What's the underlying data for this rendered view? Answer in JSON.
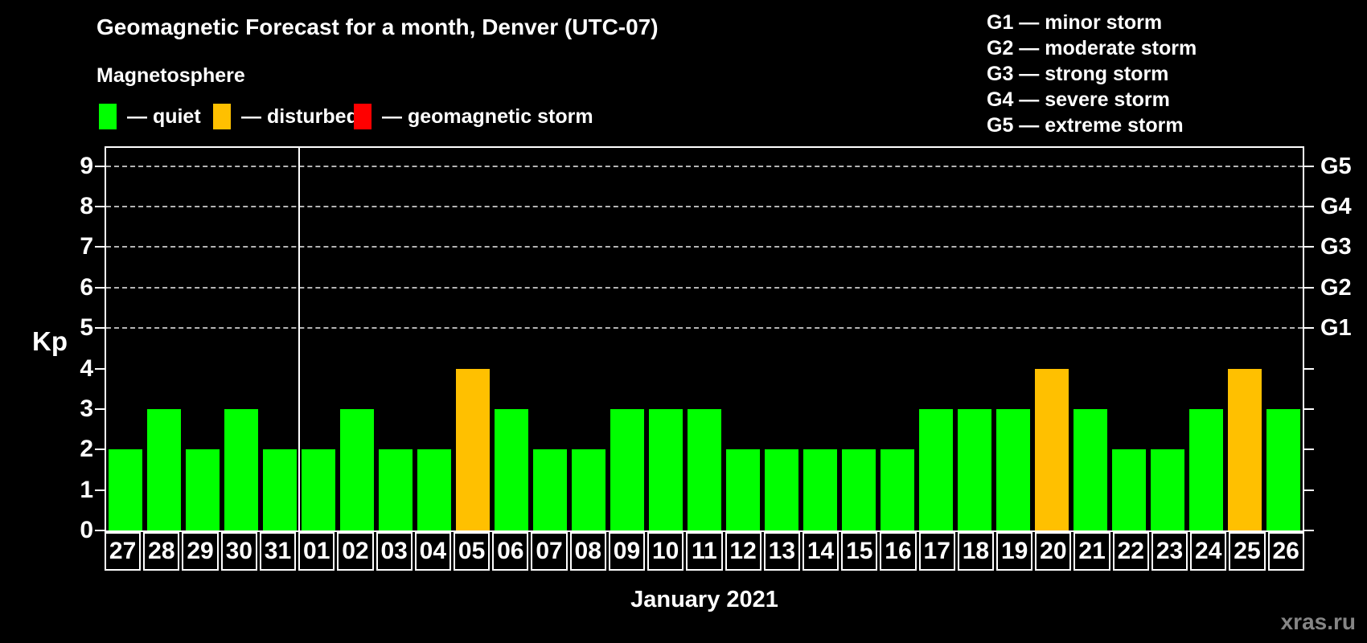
{
  "header": {
    "title": "Geomagnetic Forecast for a month, Denver (UTC-07)",
    "subtitle": "Magnetosphere"
  },
  "legend": {
    "items": [
      {
        "state": "quiet",
        "label": "— quiet",
        "color": "#00ff00"
      },
      {
        "state": "disturbed",
        "label": "— disturbed",
        "color": "#ffc000"
      },
      {
        "state": "storm",
        "label": "— geomagnetic storm",
        "color": "#ff0000"
      }
    ]
  },
  "g_legend": {
    "items": [
      "G1 — minor storm",
      "G2 — moderate storm",
      "G3 — strong storm",
      "G4 — severe storm",
      "G5 — extreme storm"
    ]
  },
  "axis": {
    "kp_label": "Kp",
    "month_label": "January 2021"
  },
  "watermark": "xras.ru",
  "chart_data": {
    "type": "bar",
    "title": "Geomagnetic Forecast for a month, Denver (UTC-07)",
    "xlabel": "January 2021",
    "ylabel": "Kp",
    "ylim": [
      0,
      9.45
    ],
    "grid": "dashed horizontal at Kp 5-9",
    "categories": [
      "27",
      "28",
      "29",
      "30",
      "31",
      "01",
      "02",
      "03",
      "04",
      "05",
      "06",
      "07",
      "08",
      "09",
      "10",
      "11",
      "12",
      "13",
      "14",
      "15",
      "16",
      "17",
      "18",
      "19",
      "20",
      "21",
      "22",
      "23",
      "24",
      "25",
      "26"
    ],
    "values": [
      2,
      3,
      2,
      3,
      2,
      2,
      3,
      2,
      2,
      4,
      3,
      2,
      2,
      3,
      3,
      3,
      2,
      2,
      2,
      2,
      2,
      3,
      3,
      3,
      4,
      3,
      2,
      2,
      3,
      4,
      3
    ],
    "bar_states": [
      "quiet",
      "quiet",
      "quiet",
      "quiet",
      "quiet",
      "quiet",
      "quiet",
      "quiet",
      "quiet",
      "disturbed",
      "quiet",
      "quiet",
      "quiet",
      "quiet",
      "quiet",
      "quiet",
      "quiet",
      "quiet",
      "quiet",
      "quiet",
      "quiet",
      "quiet",
      "quiet",
      "quiet",
      "disturbed",
      "quiet",
      "quiet",
      "quiet",
      "quiet",
      "disturbed",
      "quiet"
    ],
    "state_colors": {
      "quiet": "#00ff00",
      "disturbed": "#ffc000",
      "storm": "#ff0000"
    },
    "month_divider_after_index": 4,
    "left_ticks": [
      0,
      1,
      2,
      3,
      4,
      5,
      6,
      7,
      8,
      9
    ],
    "grid_values": [
      5,
      6,
      7,
      8,
      9
    ],
    "right_axis_labels": [
      {
        "value": 5,
        "label": "G1"
      },
      {
        "value": 6,
        "label": "G2"
      },
      {
        "value": 7,
        "label": "G3"
      },
      {
        "value": 8,
        "label": "G4"
      },
      {
        "value": 9,
        "label": "G5"
      }
    ],
    "legend_position": "top"
  }
}
